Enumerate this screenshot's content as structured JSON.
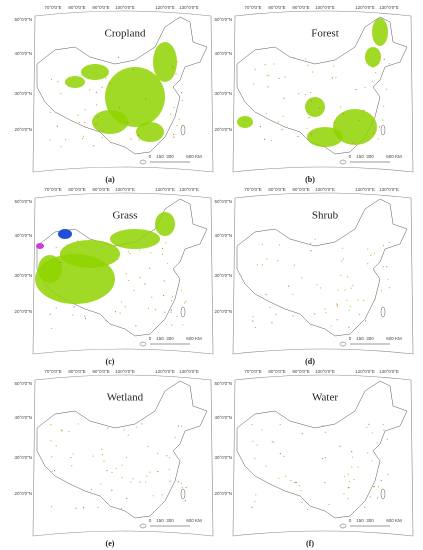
{
  "panels": [
    {
      "title": "Cropland",
      "label": "(a)"
    },
    {
      "title": "Forest",
      "label": "(b)"
    },
    {
      "title": "Grass",
      "label": "(c)"
    },
    {
      "title": "Shrub",
      "label": "(d)"
    },
    {
      "title": "Wetland",
      "label": "(e)"
    },
    {
      "title": "Water",
      "label": "(f)"
    }
  ],
  "longitude_labels": [
    "70°0'0\"E",
    "80°0'0\"E",
    "90°0'0\"E",
    "100°0'0\"E",
    "120°0'0\"E",
    "130°0'0\"E"
  ],
  "latitude_labels": [
    "50°0'0\"N",
    "40°0'0\"N",
    "30°0'0\"N",
    "20°0'0\"N"
  ],
  "scale_bar": {
    "ticks": [
      0,
      150,
      300,
      600
    ],
    "unit": "KM"
  }
}
